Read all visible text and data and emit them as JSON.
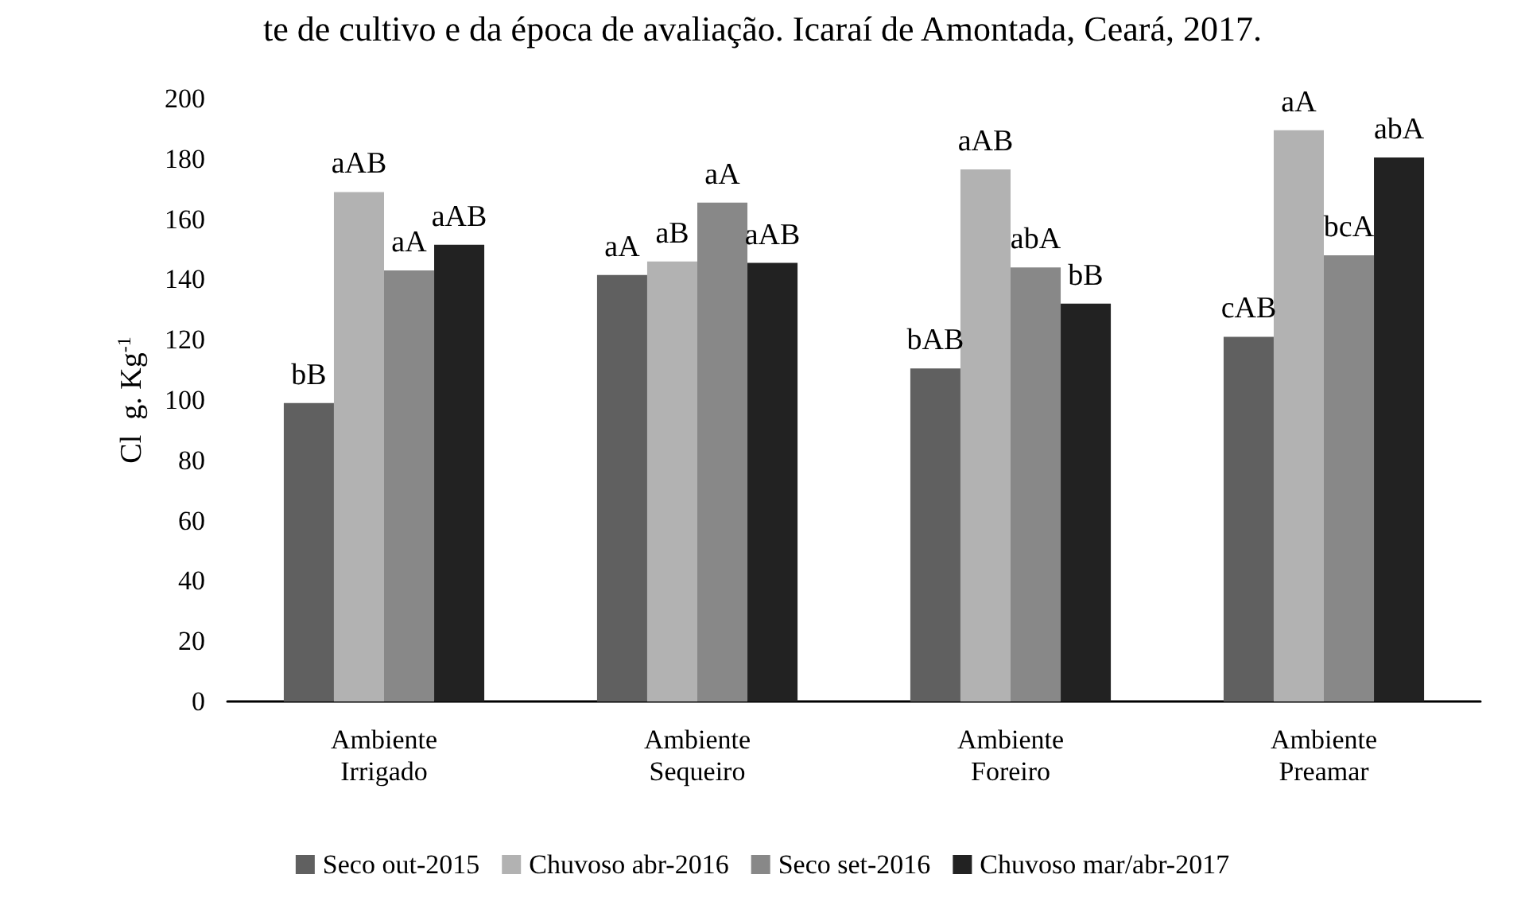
{
  "chart_data": {
    "type": "bar",
    "title": "te de cultivo e da época de avaliação. Icaraí de Amontada, Ceará, 2017.",
    "ylabel": "Cl  g. Kg$^{-1}$",
    "categories": [
      "Ambiente Irrigado",
      "Ambiente Sequeiro",
      "Ambiente Foreiro",
      "Ambiente Preamar"
    ],
    "series": [
      {
        "name": "Seco out-2015",
        "color": "#606060",
        "values": [
          99,
          141.5,
          110.5,
          121
        ],
        "value_labels": [
          "bB",
          "aA",
          "bAB",
          "cAB"
        ]
      },
      {
        "name": "Chuvoso abr-2016",
        "color": "#b2b2b2",
        "values": [
          169,
          146,
          176.5,
          189.5
        ],
        "value_labels": [
          "aAB",
          "aB",
          "aAB",
          "aA"
        ]
      },
      {
        "name": "Seco set-2016",
        "color": "#888888",
        "values": [
          143,
          165.5,
          144,
          148
        ],
        "value_labels": [
          "aA",
          "aA",
          "abA",
          "bcA"
        ]
      },
      {
        "name": "Chuvoso mar/abr-2017",
        "color": "#222222",
        "values": [
          151.5,
          145.5,
          132,
          180.5
        ],
        "value_labels": [
          "aAB",
          "aAB",
          "bB",
          "abA"
        ]
      }
    ],
    "ylim": [
      0,
      200
    ],
    "yticks": [
      0,
      20,
      40,
      60,
      80,
      100,
      120,
      140,
      160,
      180,
      200
    ],
    "grid": false,
    "legend": "bottom"
  }
}
